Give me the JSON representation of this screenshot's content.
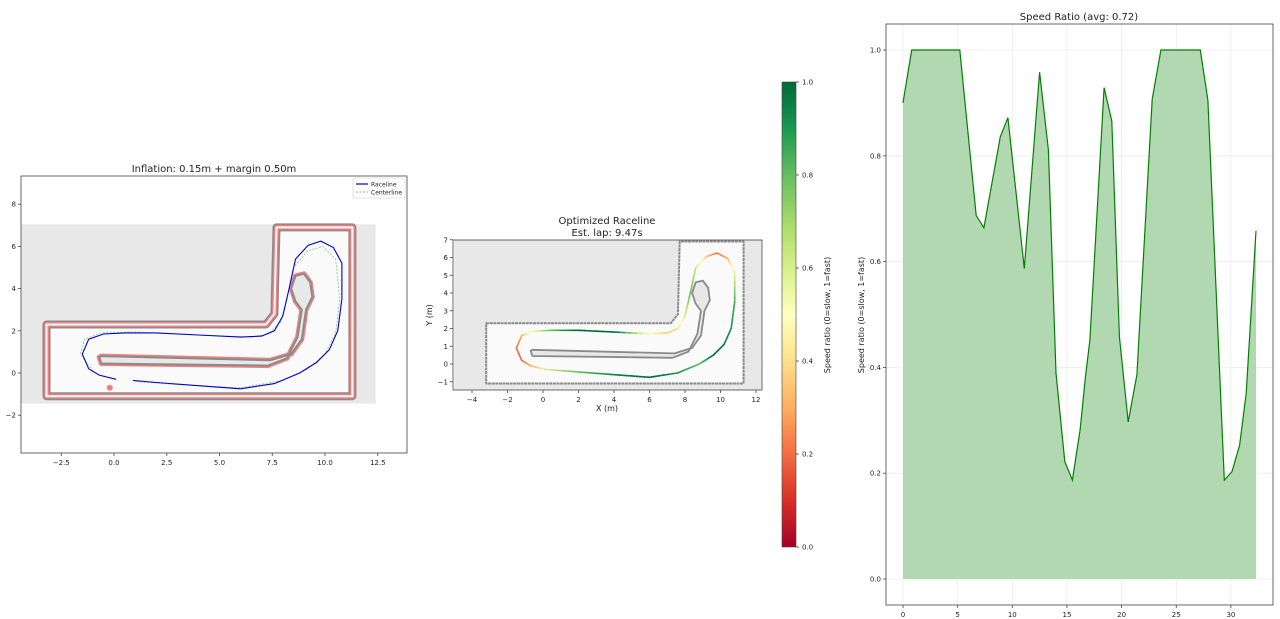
{
  "chart_data": [
    {
      "type": "line",
      "title": "Inflation: 0.15m + margin 0.50m",
      "xlabel": "",
      "ylabel": "",
      "xlim": [
        -4.4,
        13.9
      ],
      "ylim": [
        -3.8,
        9.2
      ],
      "xticks": [
        -2.5,
        0.0,
        2.5,
        5.0,
        7.5,
        10.0,
        12.5
      ],
      "xtick_labels": [
        "−2.5",
        "0.0",
        "2.5",
        "5.0",
        "7.5",
        "10.0",
        "12.5"
      ],
      "yticks": [
        -2,
        0,
        2,
        4,
        6,
        8
      ],
      "ytick_labels": [
        "−2",
        "0",
        "2",
        "4",
        "6",
        "8"
      ],
      "grid": false,
      "legend_position": "upper right",
      "legend": [
        {
          "label": "Raceline",
          "color": "#0000cc",
          "style": "solid"
        },
        {
          "label": "Centerline",
          "color": "#7fc97f",
          "style": "dashed"
        }
      ],
      "map_extent": {
        "x": [
          -4.4,
          12.4
        ],
        "y": [
          -1.45,
          7.05
        ]
      },
      "outer_wall": [
        [
          -3.2,
          2.3
        ],
        [
          7.2,
          2.3
        ],
        [
          7.6,
          2.8
        ],
        [
          7.7,
          6.9
        ],
        [
          11.3,
          6.9
        ],
        [
          11.3,
          -1.1
        ],
        [
          -3.2,
          -1.1
        ]
      ],
      "inner_wall": [
        [
          -0.7,
          0.75
        ],
        [
          -0.6,
          0.45
        ],
        [
          7.3,
          0.35
        ],
        [
          8.2,
          0.7
        ],
        [
          8.7,
          1.7
        ],
        [
          8.9,
          3.0
        ],
        [
          8.6,
          3.4
        ],
        [
          8.4,
          4.0
        ],
        [
          8.6,
          4.6
        ],
        [
          9.0,
          4.7
        ],
        [
          9.3,
          4.3
        ],
        [
          9.4,
          3.6
        ],
        [
          9.1,
          3.0
        ],
        [
          8.9,
          1.6
        ],
        [
          8.4,
          0.9
        ],
        [
          7.4,
          0.6
        ],
        [
          -0.6,
          0.8
        ]
      ],
      "series": [
        {
          "name": "Raceline",
          "x": [
            0.1,
            -0.7,
            -1.2,
            -1.5,
            -1.2,
            -0.5,
            0.5,
            2.0,
            4.0,
            6.0,
            7.0,
            7.6,
            8.0,
            8.3,
            8.6,
            9.2,
            9.8,
            10.4,
            10.8,
            10.8,
            10.6,
            10.2,
            9.6,
            8.8,
            7.6,
            6.0,
            4.0,
            2.0,
            0.9
          ],
          "y": [
            -0.3,
            -0.1,
            0.2,
            0.9,
            1.6,
            1.85,
            1.9,
            1.9,
            1.8,
            1.7,
            1.75,
            2.0,
            2.7,
            4.0,
            5.4,
            6.05,
            6.25,
            5.95,
            5.2,
            3.5,
            2.0,
            1.1,
            0.5,
            0.0,
            -0.5,
            -0.75,
            -0.6,
            -0.45,
            -0.35
          ]
        },
        {
          "name": "Centerline",
          "x": [
            -1.0,
            -1.6,
            -1.4,
            -0.6,
            1.0,
            4.0,
            6.5,
            7.3,
            7.9,
            8.2,
            8.5,
            9.2,
            9.9,
            10.5,
            10.7,
            10.5,
            10.0,
            9.2,
            8.0,
            6.0,
            3.0,
            1.0
          ],
          "y": [
            0.1,
            0.9,
            1.6,
            1.9,
            1.95,
            1.8,
            1.7,
            1.85,
            2.4,
            3.5,
            5.0,
            5.8,
            6.0,
            5.4,
            3.5,
            1.9,
            0.9,
            0.2,
            -0.35,
            -0.7,
            -0.55,
            -0.4
          ]
        }
      ],
      "markers": [
        {
          "x": -0.2,
          "y": -0.7,
          "label": "start"
        }
      ]
    },
    {
      "type": "line",
      "title": "Optimized Raceline",
      "subtitle": "Est. lap: 9.47s",
      "xlabel": "X (m)",
      "ylabel": "Y (m)",
      "xlim": [
        -5.0,
        12.3
      ],
      "ylim": [
        -1.45,
        7.05
      ],
      "xticks": [
        -4,
        -2,
        0,
        2,
        4,
        6,
        8,
        10,
        12
      ],
      "xtick_labels": [
        "−4",
        "−2",
        "0",
        "2",
        "4",
        "6",
        "8",
        "10",
        "12"
      ],
      "yticks": [
        -1,
        0,
        1,
        2,
        3,
        4,
        5,
        6,
        7
      ],
      "ytick_labels": [
        "−1",
        "0",
        "1",
        "2",
        "3",
        "4",
        "5",
        "6",
        "7"
      ],
      "grid": false,
      "colormap": "RdYlGn",
      "colorbar": {
        "label": "Speed ratio (0=slow, 1=fast)",
        "range": [
          0.0,
          1.0
        ],
        "ticks": [
          0.0,
          0.2,
          0.4,
          0.6,
          0.8,
          1.0
        ],
        "tick_labels": [
          "0.0",
          "0.2",
          "0.4",
          "0.6",
          "0.8",
          "1.0"
        ],
        "stops": [
          "#a50026",
          "#d73027",
          "#f46d43",
          "#fdae61",
          "#fee08b",
          "#ffffbf",
          "#d9ef8b",
          "#a6d96a",
          "#66bd63",
          "#1a9850",
          "#006837"
        ]
      },
      "series": [
        {
          "name": "Raceline (colored by speed)",
          "x": [
            0.1,
            -0.7,
            -1.2,
            -1.5,
            -1.2,
            -0.5,
            0.5,
            2.0,
            4.0,
            6.0,
            7.0,
            7.6,
            8.0,
            8.3,
            8.6,
            9.2,
            9.8,
            10.4,
            10.8,
            10.8,
            10.6,
            10.2,
            9.6,
            8.8,
            7.6,
            6.0,
            4.0,
            2.0,
            0.1
          ],
          "y": [
            -0.3,
            -0.1,
            0.2,
            0.9,
            1.6,
            1.85,
            1.9,
            1.9,
            1.8,
            1.7,
            1.75,
            2.0,
            2.7,
            4.0,
            5.4,
            6.05,
            6.25,
            5.95,
            5.2,
            3.5,
            2.0,
            1.1,
            0.5,
            0.0,
            -0.5,
            -0.75,
            -0.6,
            -0.45,
            -0.3
          ],
          "speed": [
            0.45,
            0.3,
            0.2,
            0.2,
            0.3,
            0.55,
            0.8,
            1.0,
            1.0,
            0.5,
            0.35,
            0.4,
            0.6,
            0.8,
            0.65,
            0.35,
            0.2,
            0.3,
            0.55,
            0.85,
            0.9,
            0.95,
            1.0,
            0.8,
            0.9,
            1.0,
            0.95,
            0.8,
            0.6
          ]
        }
      ]
    },
    {
      "type": "area",
      "title": "Speed Ratio (avg: 0.72)",
      "xlabel": "",
      "ylabel": "Speed ratio (0=slow, 1=fast)",
      "xlim": [
        -1.6,
        33.9
      ],
      "ylim": [
        -0.05,
        1.05
      ],
      "xticks": [
        0,
        5,
        10,
        15,
        20,
        25,
        30
      ],
      "xtick_labels": [
        "0",
        "5",
        "10",
        "15",
        "20",
        "25",
        "30"
      ],
      "yticks": [
        0.0,
        0.2,
        0.4,
        0.6,
        0.8,
        1.0
      ],
      "ytick_labels": [
        "0.0",
        "0.2",
        "0.4",
        "0.6",
        "0.8",
        "1.0"
      ],
      "grid": true,
      "line_color": "#008000",
      "fill_color": "#b2d8b2",
      "series": [
        {
          "name": "Speed ratio",
          "x": [
            0.0,
            0.8,
            5.2,
            6.7,
            7.4,
            8.9,
            9.6,
            11.1,
            12.5,
            13.3,
            14.0,
            14.8,
            15.5,
            16.2,
            16.7,
            17.1,
            18.4,
            19.1,
            19.8,
            20.6,
            21.4,
            22.8,
            23.6,
            27.2,
            27.9,
            29.4,
            30.1,
            30.8,
            31.4,
            32.3
          ],
          "y": [
            0.9,
            1.0,
            1.0,
            0.687,
            0.664,
            0.836,
            0.872,
            0.587,
            0.958,
            0.811,
            0.389,
            0.222,
            0.187,
            0.282,
            0.383,
            0.452,
            0.929,
            0.866,
            0.458,
            0.297,
            0.386,
            0.907,
            1.0,
            1.0,
            0.905,
            0.187,
            0.203,
            0.253,
            0.351,
            0.658
          ]
        }
      ],
      "average": 0.72
    }
  ],
  "panels": {
    "left": {
      "title": "Inflation: 0.15m + margin 0.50m",
      "legend_raceline": "Raceline",
      "legend_centerline": "Centerline"
    },
    "middle": {
      "title": "Optimized Raceline",
      "subtitle": "Est. lap: 9.47s",
      "xlabel": "X (m)",
      "ylabel": "Y (m)",
      "colorbar_label": "Speed ratio (0=slow, 1=fast)"
    },
    "right": {
      "title": "Speed Ratio (avg: 0.72)",
      "ylabel": "Speed ratio (0=slow, 1=fast)"
    }
  },
  "colors": {
    "axis": "#444444",
    "map_unknown": "#e8e8e8",
    "map_free": "#fafafa",
    "wall": "#8a8a8a",
    "inflation": "#f08080",
    "raceline": "#0000cc",
    "centerline": "#7fc97f",
    "grid": "#ececec"
  }
}
